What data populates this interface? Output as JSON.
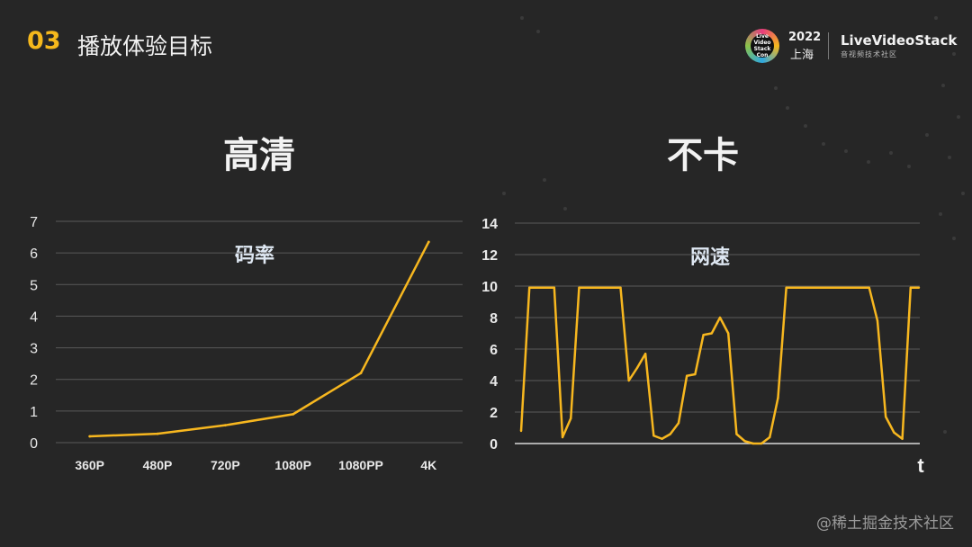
{
  "header": {
    "number": "03",
    "title": "播放体验目标"
  },
  "logo": {
    "badge_text": "Live Video Stack Con",
    "year": "2022",
    "city": "上海",
    "name": "LiveVideoStack",
    "tagline": "音视频技术社区"
  },
  "panels": {
    "left_title": "高清",
    "right_title": "不卡"
  },
  "watermark": "@稀土掘金技术社区",
  "colors": {
    "background": "#262626",
    "accent": "#f5b81c",
    "line": "#f7b71f",
    "grid": "#595959"
  },
  "chart_data": [
    {
      "type": "line",
      "title": "码率",
      "categories": [
        "360P",
        "480P",
        "720P",
        "1080P",
        "1080PP",
        "4K"
      ],
      "series": [
        {
          "values": [
            0.2,
            0.28,
            0.55,
            0.9,
            2.2,
            6.35
          ]
        }
      ],
      "xlabel": "",
      "ylabel": "",
      "ylim": [
        0,
        7
      ],
      "yticks": [
        "0",
        "1",
        "2",
        "3",
        "4",
        "5",
        "6",
        "7"
      ],
      "grid": true
    },
    {
      "type": "line",
      "title": "网速",
      "xlabel": "t",
      "ylabel": "",
      "ylim": [
        0,
        14
      ],
      "yticks": [
        "0",
        "2",
        "4",
        "6",
        "8",
        "10",
        "12",
        "14"
      ],
      "grid": true,
      "series": [
        {
          "values": [
            0.8,
            9.9,
            9.9,
            9.9,
            9.9,
            0.4,
            1.6,
            9.9,
            9.9,
            9.9,
            9.9,
            9.9,
            9.9,
            4.0,
            4.8,
            5.7,
            0.5,
            0.3,
            0.6,
            1.3,
            4.3,
            4.4,
            6.9,
            7.0,
            8.0,
            7.0,
            0.6,
            0.15,
            0.0,
            0.0,
            0.4,
            2.9,
            9.9,
            9.9,
            9.9,
            9.9,
            9.9,
            9.9,
            9.9,
            9.9,
            9.9,
            9.9,
            9.9,
            7.8,
            1.7,
            0.7,
            0.3,
            9.9,
            9.9
          ]
        }
      ]
    }
  ]
}
